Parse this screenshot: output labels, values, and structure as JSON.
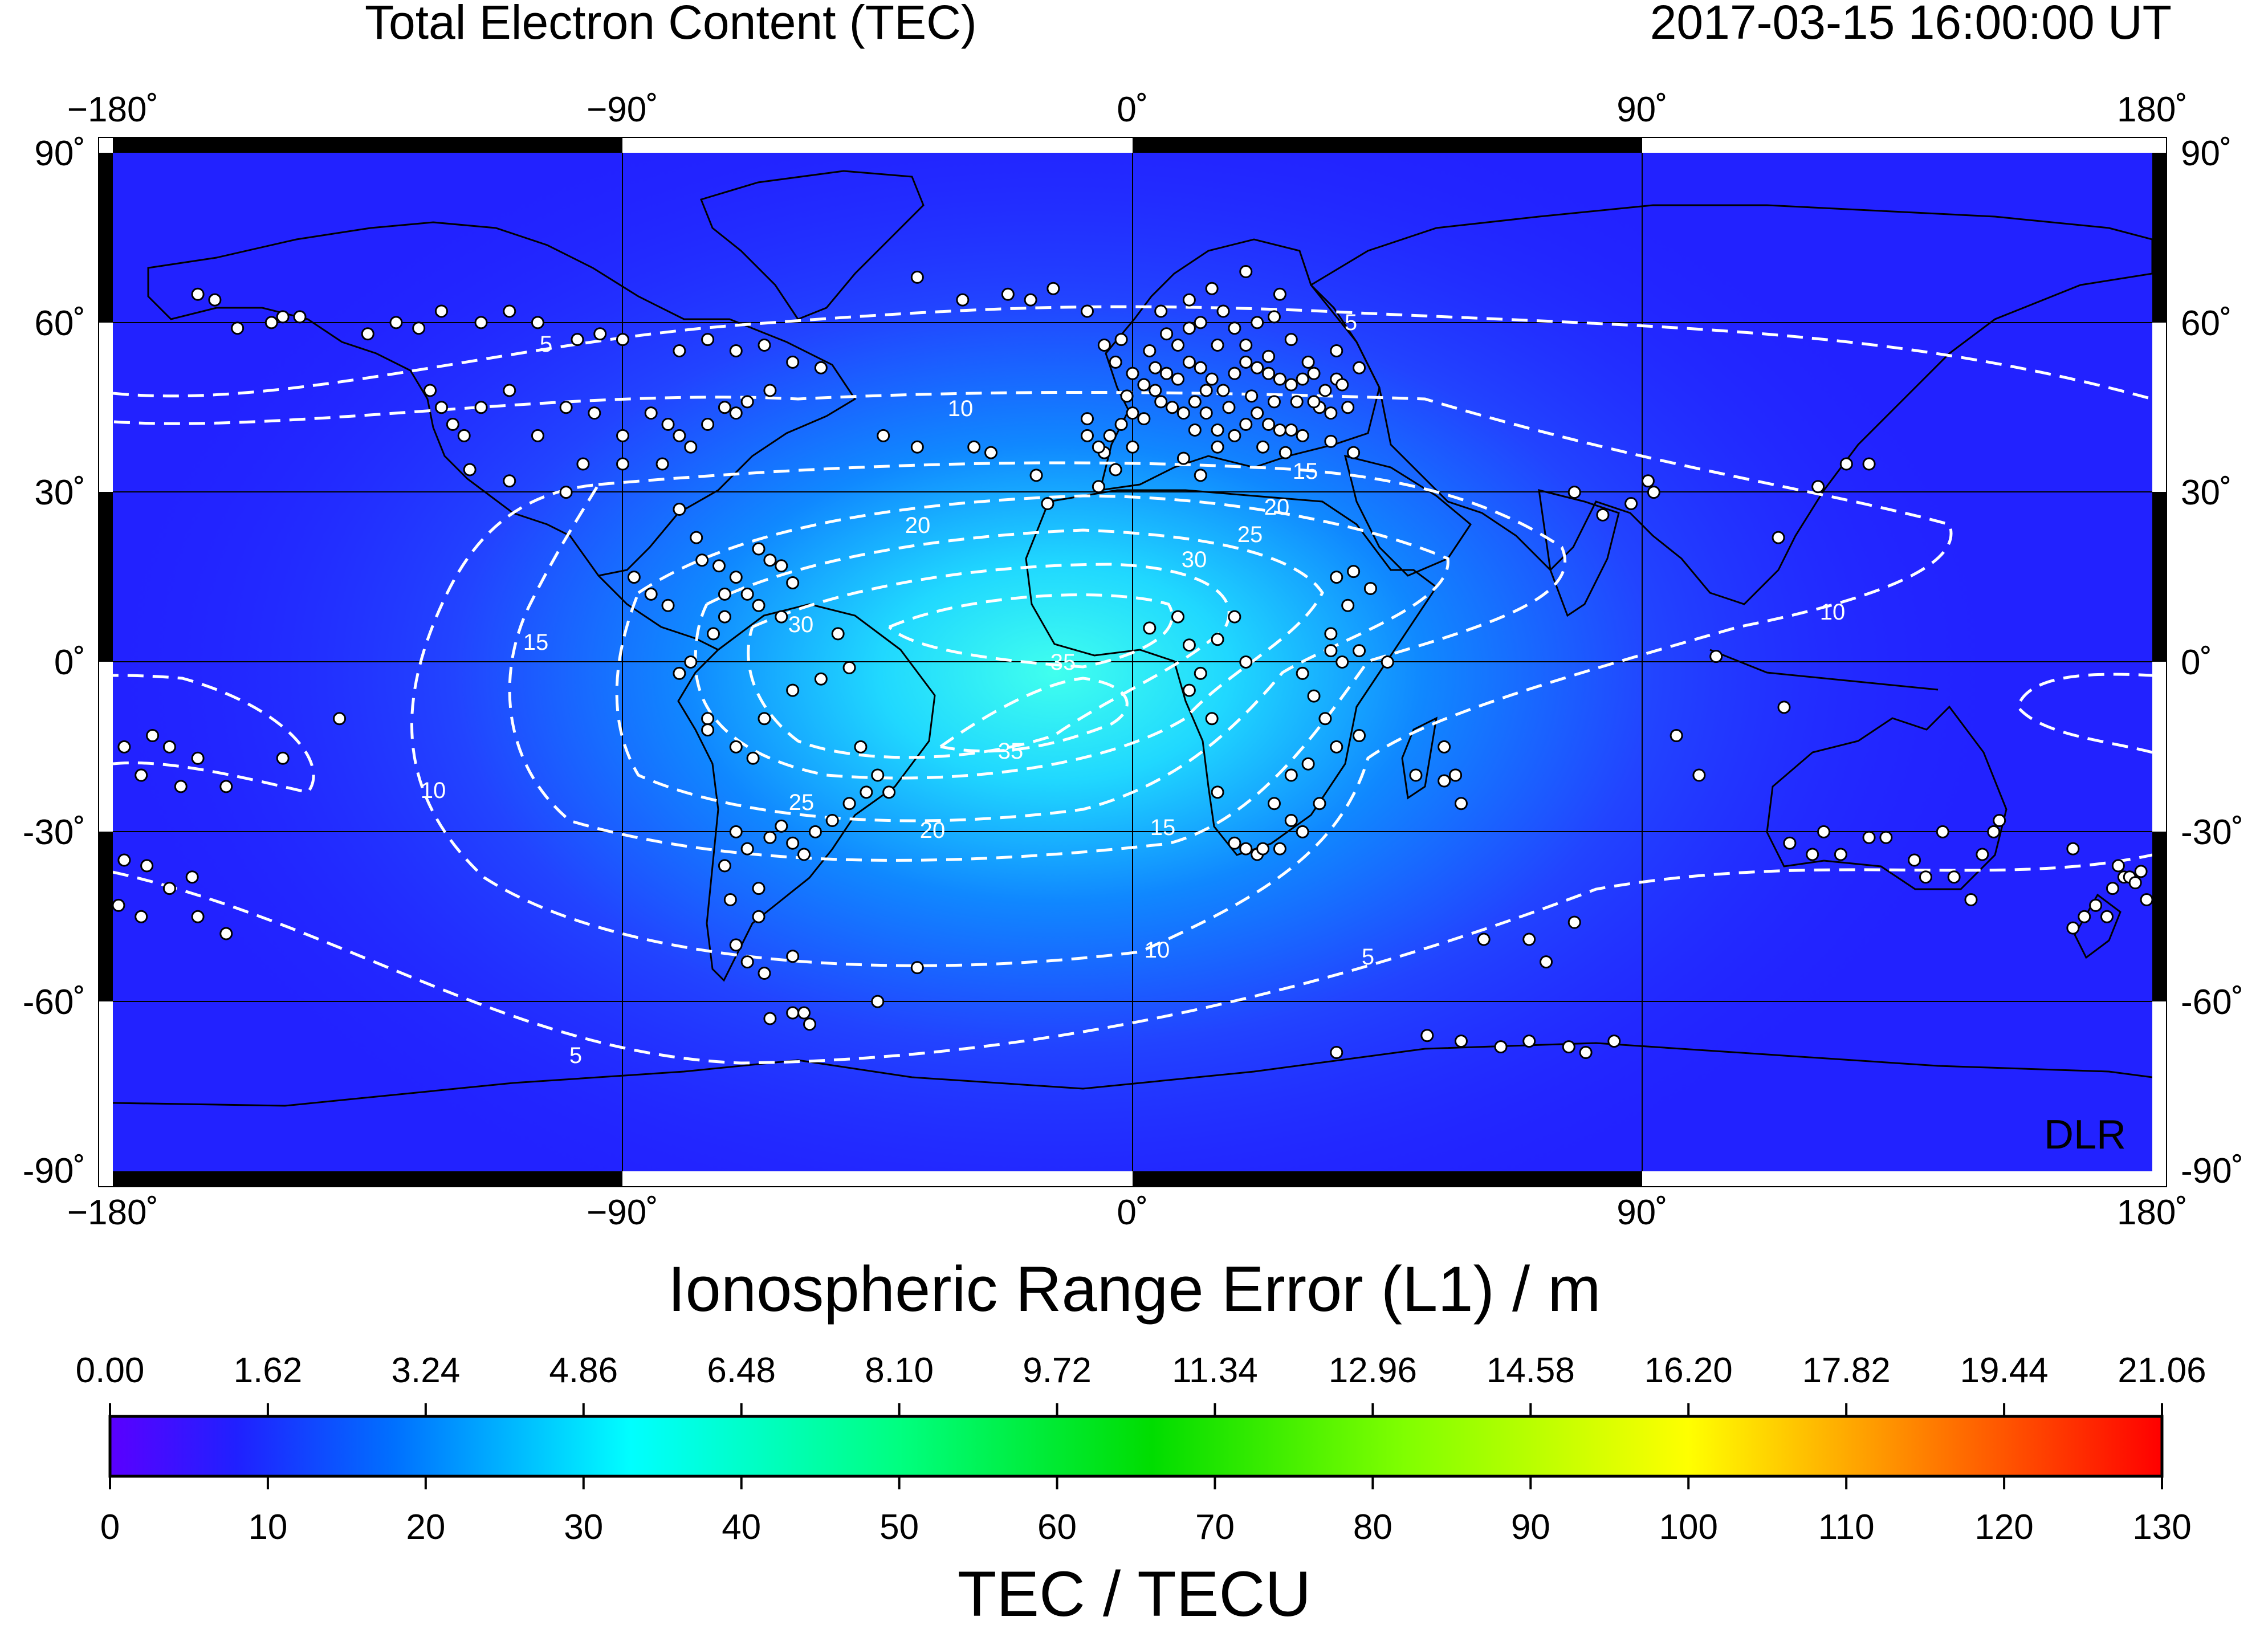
{
  "header": {
    "title": "Total Electron Content (TEC)",
    "timestamp": "2017-03-15  16:00:00 UT"
  },
  "map": {
    "lon_ticks": [
      "−180˚",
      "−90˚",
      "0˚",
      "90˚",
      "180˚"
    ],
    "lat_ticks": [
      "90˚",
      "60˚",
      "30˚",
      "0˚",
      "-30˚",
      "-60˚",
      "-90˚"
    ],
    "watermark": "DLR",
    "contours": [
      {
        "level": 5,
        "label": "5"
      },
      {
        "level": 10,
        "label": "10"
      },
      {
        "level": 15,
        "label": "15"
      },
      {
        "level": 20,
        "label": "20"
      },
      {
        "level": 25,
        "label": "25"
      },
      {
        "level": 30,
        "label": "30"
      },
      {
        "level": 35,
        "label": "35"
      }
    ],
    "colors": {
      "background_tec": "#2222ff",
      "peak_tec": "#40ffee",
      "contour": "#ffffff",
      "station": "#ffffff",
      "coastline": "#000000"
    }
  },
  "colorbar": {
    "top_title": "Ionospheric Range Error (L1) / m",
    "top_ticks": [
      "0.00",
      "1.62",
      "3.24",
      "4.86",
      "6.48",
      "8.10",
      "9.72",
      "11.34",
      "12.96",
      "14.58",
      "16.20",
      "17.82",
      "19.44",
      "21.06"
    ],
    "bottom_ticks": [
      "0",
      "10",
      "20",
      "30",
      "40",
      "50",
      "60",
      "70",
      "80",
      "90",
      "100",
      "110",
      "120",
      "130"
    ],
    "bottom_title": "TEC / TECU",
    "stops": [
      {
        "value": 0,
        "color": "#5a00ff"
      },
      {
        "value": 8,
        "color": "#2020ff"
      },
      {
        "value": 18,
        "color": "#0070ff"
      },
      {
        "value": 33,
        "color": "#00ffff"
      },
      {
        "value": 50,
        "color": "#00ff80"
      },
      {
        "value": 66,
        "color": "#00dd00"
      },
      {
        "value": 82,
        "color": "#80ff00"
      },
      {
        "value": 100,
        "color": "#ffff00"
      },
      {
        "value": 114,
        "color": "#ff8800"
      },
      {
        "value": 130,
        "color": "#ff0000"
      }
    ]
  },
  "stations": [
    [
      -165,
      65
    ],
    [
      -162,
      64
    ],
    [
      -158,
      59
    ],
    [
      -152,
      60
    ],
    [
      -150,
      61
    ],
    [
      -147,
      61
    ],
    [
      -135,
      58
    ],
    [
      -130,
      60
    ],
    [
      -126,
      59
    ],
    [
      -122,
      62
    ],
    [
      -115,
      60
    ],
    [
      -110,
      62
    ],
    [
      -105,
      60
    ],
    [
      -98,
      57
    ],
    [
      -94,
      58
    ],
    [
      -90,
      57
    ],
    [
      -80,
      55
    ],
    [
      -75,
      57
    ],
    [
      -70,
      55
    ],
    [
      -65,
      56
    ],
    [
      -60,
      53
    ],
    [
      -55,
      52
    ],
    [
      -124,
      48
    ],
    [
      -122,
      45
    ],
    [
      -120,
      42
    ],
    [
      -118,
      40
    ],
    [
      -115,
      45
    ],
    [
      -110,
      48
    ],
    [
      -105,
      40
    ],
    [
      -100,
      45
    ],
    [
      -95,
      44
    ],
    [
      -90,
      40
    ],
    [
      -85,
      44
    ],
    [
      -82,
      42
    ],
    [
      -80,
      40
    ],
    [
      -78,
      38
    ],
    [
      -75,
      42
    ],
    [
      -72,
      45
    ],
    [
      -70,
      44
    ],
    [
      -68,
      46
    ],
    [
      -64,
      48
    ],
    [
      -90,
      35
    ],
    [
      -97,
      35
    ],
    [
      -117,
      34
    ],
    [
      -80,
      27
    ],
    [
      -100,
      30
    ],
    [
      -110,
      32
    ],
    [
      -83,
      35
    ],
    [
      -38,
      68
    ],
    [
      -30,
      64
    ],
    [
      -22,
      65
    ],
    [
      -18,
      64
    ],
    [
      -14,
      66
    ],
    [
      -8,
      62
    ],
    [
      -44,
      40
    ],
    [
      -38,
      38
    ],
    [
      -28,
      38
    ],
    [
      -25,
      37
    ],
    [
      -17,
      33
    ],
    [
      -8,
      40
    ],
    [
      -5,
      37
    ],
    [
      0,
      38
    ],
    [
      -3,
      34
    ],
    [
      -6,
      31
    ],
    [
      -15,
      28
    ],
    [
      -3,
      53
    ],
    [
      0,
      51
    ],
    [
      2,
      49
    ],
    [
      4,
      52
    ],
    [
      6,
      51
    ],
    [
      8,
      50
    ],
    [
      10,
      53
    ],
    [
      12,
      52
    ],
    [
      14,
      50
    ],
    [
      16,
      48
    ],
    [
      18,
      51
    ],
    [
      20,
      53
    ],
    [
      22,
      52
    ],
    [
      24,
      51
    ],
    [
      26,
      50
    ],
    [
      28,
      49
    ],
    [
      30,
      50
    ],
    [
      32,
      51
    ],
    [
      34,
      48
    ],
    [
      36,
      50
    ],
    [
      5,
      46
    ],
    [
      7,
      45
    ],
    [
      9,
      44
    ],
    [
      11,
      46
    ],
    [
      13,
      44
    ],
    [
      15,
      41
    ],
    [
      18,
      40
    ],
    [
      20,
      42
    ],
    [
      22,
      44
    ],
    [
      24,
      42
    ],
    [
      26,
      41
    ],
    [
      28,
      41
    ],
    [
      30,
      40
    ],
    [
      33,
      45
    ],
    [
      35,
      44
    ],
    [
      0,
      44
    ],
    [
      -2,
      42
    ],
    [
      -4,
      40
    ],
    [
      -6,
      38
    ],
    [
      -8,
      43
    ],
    [
      6,
      58
    ],
    [
      10,
      59
    ],
    [
      12,
      60
    ],
    [
      16,
      62
    ],
    [
      18,
      59
    ],
    [
      22,
      60
    ],
    [
      25,
      61
    ],
    [
      28,
      57
    ],
    [
      20,
      56
    ],
    [
      24,
      54
    ],
    [
      15,
      56
    ],
    [
      8,
      56
    ],
    [
      3,
      55
    ],
    [
      -5,
      56
    ],
    [
      -2,
      57
    ],
    [
      32,
      46
    ],
    [
      36,
      55
    ],
    [
      38,
      45
    ],
    [
      40,
      52
    ],
    [
      5,
      62
    ],
    [
      14,
      66
    ],
    [
      20,
      69
    ],
    [
      26,
      65
    ],
    [
      10,
      64
    ],
    [
      4,
      48
    ],
    [
      -1,
      47
    ],
    [
      13,
      48
    ],
    [
      2,
      43
    ],
    [
      17,
      45
    ],
    [
      21,
      47
    ],
    [
      25,
      46
    ],
    [
      29,
      46
    ],
    [
      31,
      53
    ],
    [
      37,
      49
    ],
    [
      11,
      41
    ],
    [
      15,
      38
    ],
    [
      23,
      38
    ],
    [
      27,
      37
    ],
    [
      35,
      39
    ],
    [
      39,
      37
    ],
    [
      9,
      36
    ],
    [
      12,
      33
    ],
    [
      3,
      6
    ],
    [
      8,
      8
    ],
    [
      10,
      3
    ],
    [
      12,
      -2
    ],
    [
      15,
      4
    ],
    [
      18,
      8
    ],
    [
      20,
      0
    ],
    [
      10,
      -5
    ],
    [
      14,
      -10
    ],
    [
      36,
      15
    ],
    [
      38,
      10
    ],
    [
      35,
      5
    ],
    [
      37,
      0
    ],
    [
      30,
      -2
    ],
    [
      32,
      -6
    ],
    [
      34,
      -10
    ],
    [
      36,
      -15
    ],
    [
      28,
      -20
    ],
    [
      25,
      -25
    ],
    [
      28,
      -28
    ],
    [
      30,
      -30
    ],
    [
      22,
      -34
    ],
    [
      20,
      -33
    ],
    [
      18,
      -32
    ],
    [
      23,
      -33
    ],
    [
      26,
      -33
    ],
    [
      15,
      -23
    ],
    [
      35,
      2
    ],
    [
      40,
      2
    ],
    [
      42,
      13
    ],
    [
      39,
      16
    ],
    [
      45,
      0
    ],
    [
      33,
      -25
    ],
    [
      31,
      -18
    ],
    [
      40,
      -13
    ],
    [
      50,
      -20
    ],
    [
      55,
      -21
    ],
    [
      57,
      -20
    ],
    [
      58,
      -25
    ],
    [
      55,
      -15
    ],
    [
      -80,
      -2
    ],
    [
      -78,
      0
    ],
    [
      -75,
      -10
    ],
    [
      -70,
      -15
    ],
    [
      -67,
      -17
    ],
    [
      -65,
      -10
    ],
    [
      -60,
      -5
    ],
    [
      -55,
      -3
    ],
    [
      -50,
      -1
    ],
    [
      -48,
      -15
    ],
    [
      -45,
      -20
    ],
    [
      -43,
      -23
    ],
    [
      -47,
      -23
    ],
    [
      -50,
      -25
    ],
    [
      -53,
      -28
    ],
    [
      -56,
      -30
    ],
    [
      -58,
      -34
    ],
    [
      -60,
      -32
    ],
    [
      -62,
      -29
    ],
    [
      -64,
      -31
    ],
    [
      -68,
      -33
    ],
    [
      -70,
      -30
    ],
    [
      -72,
      -36
    ],
    [
      -66,
      -40
    ],
    [
      -71,
      -42
    ],
    [
      -66,
      -45
    ],
    [
      -70,
      -50
    ],
    [
      -68,
      -53
    ],
    [
      -65,
      -55
    ],
    [
      -60,
      -52
    ],
    [
      -64,
      -63
    ],
    [
      -58,
      -62
    ],
    [
      -45,
      -60
    ],
    [
      -38,
      -54
    ],
    [
      -75,
      -12
    ],
    [
      -74,
      5
    ],
    [
      -72,
      8
    ],
    [
      -66,
      10
    ],
    [
      -62,
      8
    ],
    [
      -70,
      15
    ],
    [
      -64,
      18
    ],
    [
      -66,
      20
    ],
    [
      -72,
      12
    ],
    [
      -68,
      12
    ],
    [
      -76,
      18
    ],
    [
      -73,
      17
    ],
    [
      -77,
      22
    ],
    [
      -82,
      10
    ],
    [
      -85,
      12
    ],
    [
      -88,
      15
    ],
    [
      -60,
      14
    ],
    [
      -62,
      17
    ],
    [
      -52,
      5
    ],
    [
      -178,
      -15
    ],
    [
      -175,
      -20
    ],
    [
      -170,
      -15
    ],
    [
      -168,
      -22
    ],
    [
      -165,
      -17
    ],
    [
      -160,
      -22
    ],
    [
      -150,
      -17
    ],
    [
      -173,
      -13
    ],
    [
      -140,
      -10
    ],
    [
      -179,
      -43
    ],
    [
      -175,
      -45
    ],
    [
      -170,
      -40
    ],
    [
      -165,
      -45
    ],
    [
      -160,
      -48
    ],
    [
      -178,
      -35
    ],
    [
      -174,
      -36
    ],
    [
      -166,
      -38
    ],
    [
      103,
      1
    ],
    [
      115,
      -8
    ],
    [
      116,
      -32
    ],
    [
      120,
      -34
    ],
    [
      122,
      -30
    ],
    [
      125,
      -34
    ],
    [
      130,
      -31
    ],
    [
      140,
      -38
    ],
    [
      145,
      -38
    ],
    [
      150,
      -34
    ],
    [
      152,
      -30
    ],
    [
      148,
      -42
    ],
    [
      133,
      -31
    ],
    [
      138,
      -35
    ],
    [
      153,
      -28
    ],
    [
      143,
      -30
    ],
    [
      170,
      -43
    ],
    [
      173,
      -40
    ],
    [
      175,
      -38
    ],
    [
      174,
      -36
    ],
    [
      176,
      -38
    ],
    [
      172,
      -45
    ],
    [
      168,
      -45
    ],
    [
      166,
      -47
    ],
    [
      177,
      -39
    ],
    [
      178,
      -37
    ],
    [
      179,
      -42
    ],
    [
      166,
      -33
    ],
    [
      100,
      -20
    ],
    [
      96,
      -13
    ],
    [
      92,
      30
    ],
    [
      88,
      28
    ],
    [
      78,
      30
    ],
    [
      83,
      26
    ],
    [
      91,
      32
    ],
    [
      114,
      22
    ],
    [
      121,
      31
    ],
    [
      126,
      35
    ],
    [
      130,
      35
    ],
    [
      36,
      -69
    ],
    [
      52,
      -66
    ],
    [
      58,
      -67
    ],
    [
      65,
      -68
    ],
    [
      70,
      -67
    ],
    [
      77,
      -68
    ],
    [
      80,
      -69
    ],
    [
      85,
      -67
    ],
    [
      62,
      -49
    ],
    [
      70,
      -49
    ],
    [
      73,
      -53
    ],
    [
      78,
      -46
    ],
    [
      57,
      -20
    ],
    [
      -60,
      -62
    ],
    [
      -57,
      -64
    ]
  ]
}
